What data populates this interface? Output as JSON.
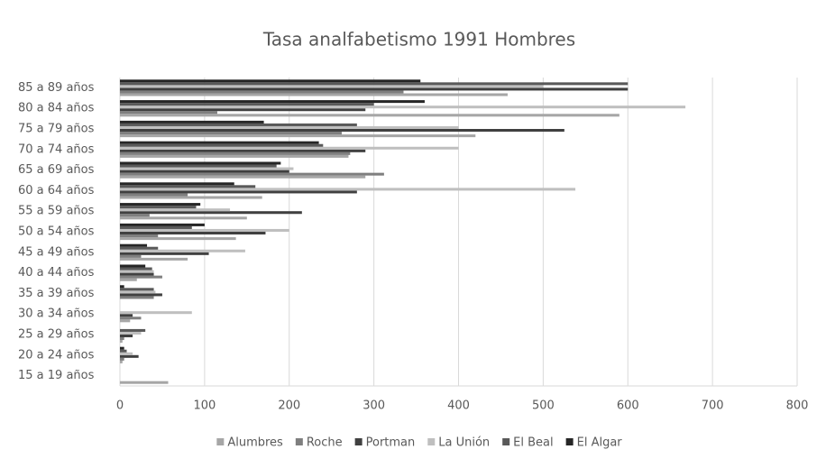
{
  "chart_data": {
    "type": "hbar",
    "title": "Tasa analfabetismo 1991 Hombres",
    "categories": [
      "15 a 19 años",
      "20 a 24 años",
      "25 a 29 años",
      "30 a 34 años",
      "35 a 39 años",
      "40 a 44 años",
      "45 a 49 años",
      "50 a 54 años",
      "55 a 59 años",
      "60 a 64 años",
      "65 a 69 años",
      "70 a 74 años",
      "75 a 79 años",
      "80 a 84 años",
      "85 a 89 años"
    ],
    "series": [
      {
        "name": "Alumbres",
        "color": "#a6a6a6",
        "values": [
          57,
          3,
          3,
          12,
          0,
          20,
          80,
          137,
          150,
          168,
          290,
          270,
          420,
          590,
          458
        ]
      },
      {
        "name": "Roche",
        "color": "#7f7f7f",
        "values": [
          0,
          5,
          5,
          25,
          40,
          50,
          25,
          45,
          35,
          80,
          312,
          272,
          262,
          115,
          335
        ]
      },
      {
        "name": "Portman",
        "color": "#404040",
        "values": [
          0,
          22,
          15,
          15,
          50,
          40,
          105,
          172,
          215,
          280,
          200,
          290,
          525,
          290,
          600
        ]
      },
      {
        "name": "La Unión",
        "color": "#bfbfbf",
        "values": [
          0,
          15,
          25,
          85,
          42,
          40,
          148,
          200,
          130,
          538,
          205,
          400,
          400,
          668,
          500
        ]
      },
      {
        "name": "El Beal",
        "color": "#595959",
        "values": [
          0,
          8,
          30,
          0,
          40,
          38,
          45,
          85,
          90,
          160,
          185,
          240,
          280,
          300,
          600
        ]
      },
      {
        "name": "El Algar",
        "color": "#262626",
        "values": [
          0,
          5,
          0,
          0,
          5,
          30,
          32,
          100,
          95,
          135,
          190,
          235,
          170,
          360,
          355
        ]
      }
    ],
    "xlim": [
      0,
      800
    ],
    "xticks": [
      0,
      100,
      200,
      300,
      400,
      500,
      600,
      700,
      800
    ],
    "grid": true,
    "legend": "bottom"
  }
}
